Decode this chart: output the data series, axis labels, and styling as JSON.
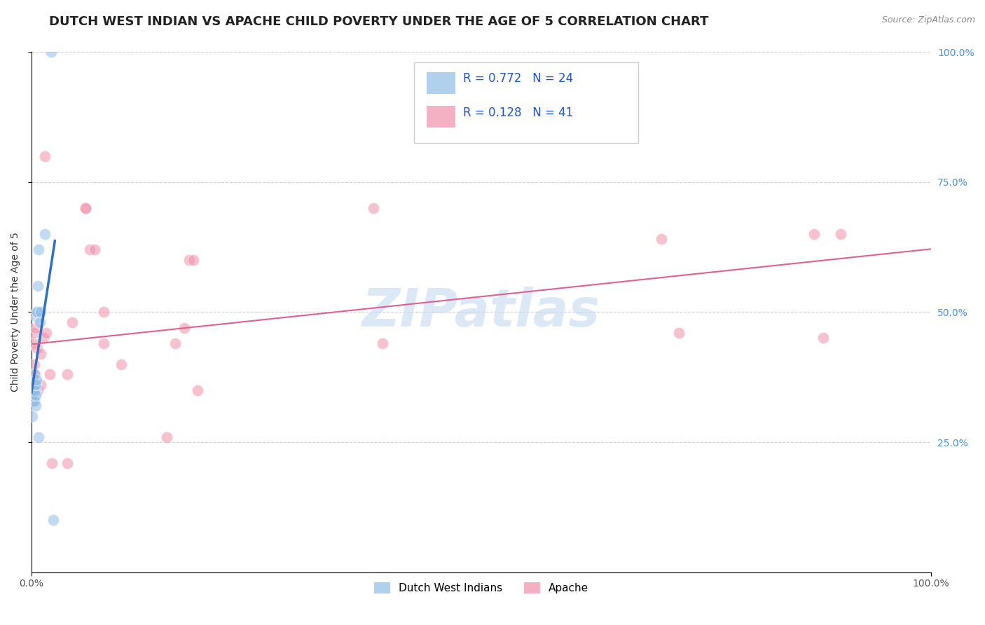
{
  "title": "DUTCH WEST INDIAN VS APACHE CHILD POVERTY UNDER THE AGE OF 5 CORRELATION CHART",
  "source": "Source: ZipAtlas.com",
  "ylabel": "Child Poverty Under the Age of 5",
  "background_color": "#ffffff",
  "watermark": "ZIPatlas",
  "dutch_R": 0.772,
  "dutch_N": 24,
  "apache_R": 0.128,
  "apache_N": 41,
  "dutch_x": [
    0.1,
    0.2,
    0.2,
    0.25,
    0.3,
    0.3,
    0.35,
    0.4,
    0.4,
    0.45,
    0.5,
    0.5,
    0.55,
    0.6,
    0.6,
    0.65,
    0.7,
    0.75,
    0.8,
    0.9,
    1.0,
    1.5,
    2.2,
    2.4
  ],
  "dutch_y": [
    30,
    35,
    36,
    33,
    35,
    38,
    33,
    35,
    36,
    32,
    34,
    36,
    37,
    49,
    50,
    50,
    55,
    62,
    26,
    48,
    50,
    65,
    100,
    10
  ],
  "apache_x": [
    0.05,
    0.1,
    0.15,
    0.2,
    0.25,
    0.3,
    0.35,
    0.4,
    0.5,
    0.6,
    0.7,
    1.0,
    1.0,
    1.3,
    1.5,
    1.6,
    2.0,
    2.3,
    4.0,
    4.0,
    4.5,
    6.0,
    6.0,
    6.5,
    7.0,
    8.0,
    8.0,
    10.0,
    15.0,
    16.0,
    17.0,
    17.5,
    18.0,
    18.5,
    38.0,
    39.0,
    70.0,
    72.0,
    87.0,
    88.0,
    90.0
  ],
  "apache_y": [
    33,
    38,
    44,
    46,
    35,
    40,
    35,
    38,
    47,
    43,
    35,
    36,
    42,
    45,
    80,
    46,
    38,
    21,
    21,
    38,
    48,
    70,
    70,
    62,
    62,
    50,
    44,
    40,
    26,
    44,
    47,
    60,
    60,
    35,
    70,
    44,
    64,
    46,
    65,
    45,
    65
  ],
  "dutch_color": "#90bce8",
  "apache_color": "#f090aa",
  "dutch_line_color": "#3070c0",
  "apache_line_color": "#e06090",
  "grid_color": "#cccccc",
  "marker_size": 140,
  "title_fontsize": 13,
  "ylabel_fontsize": 10,
  "tick_fontsize": 10,
  "legend_fontsize": 12,
  "right_tick_color": "#4a90d9"
}
